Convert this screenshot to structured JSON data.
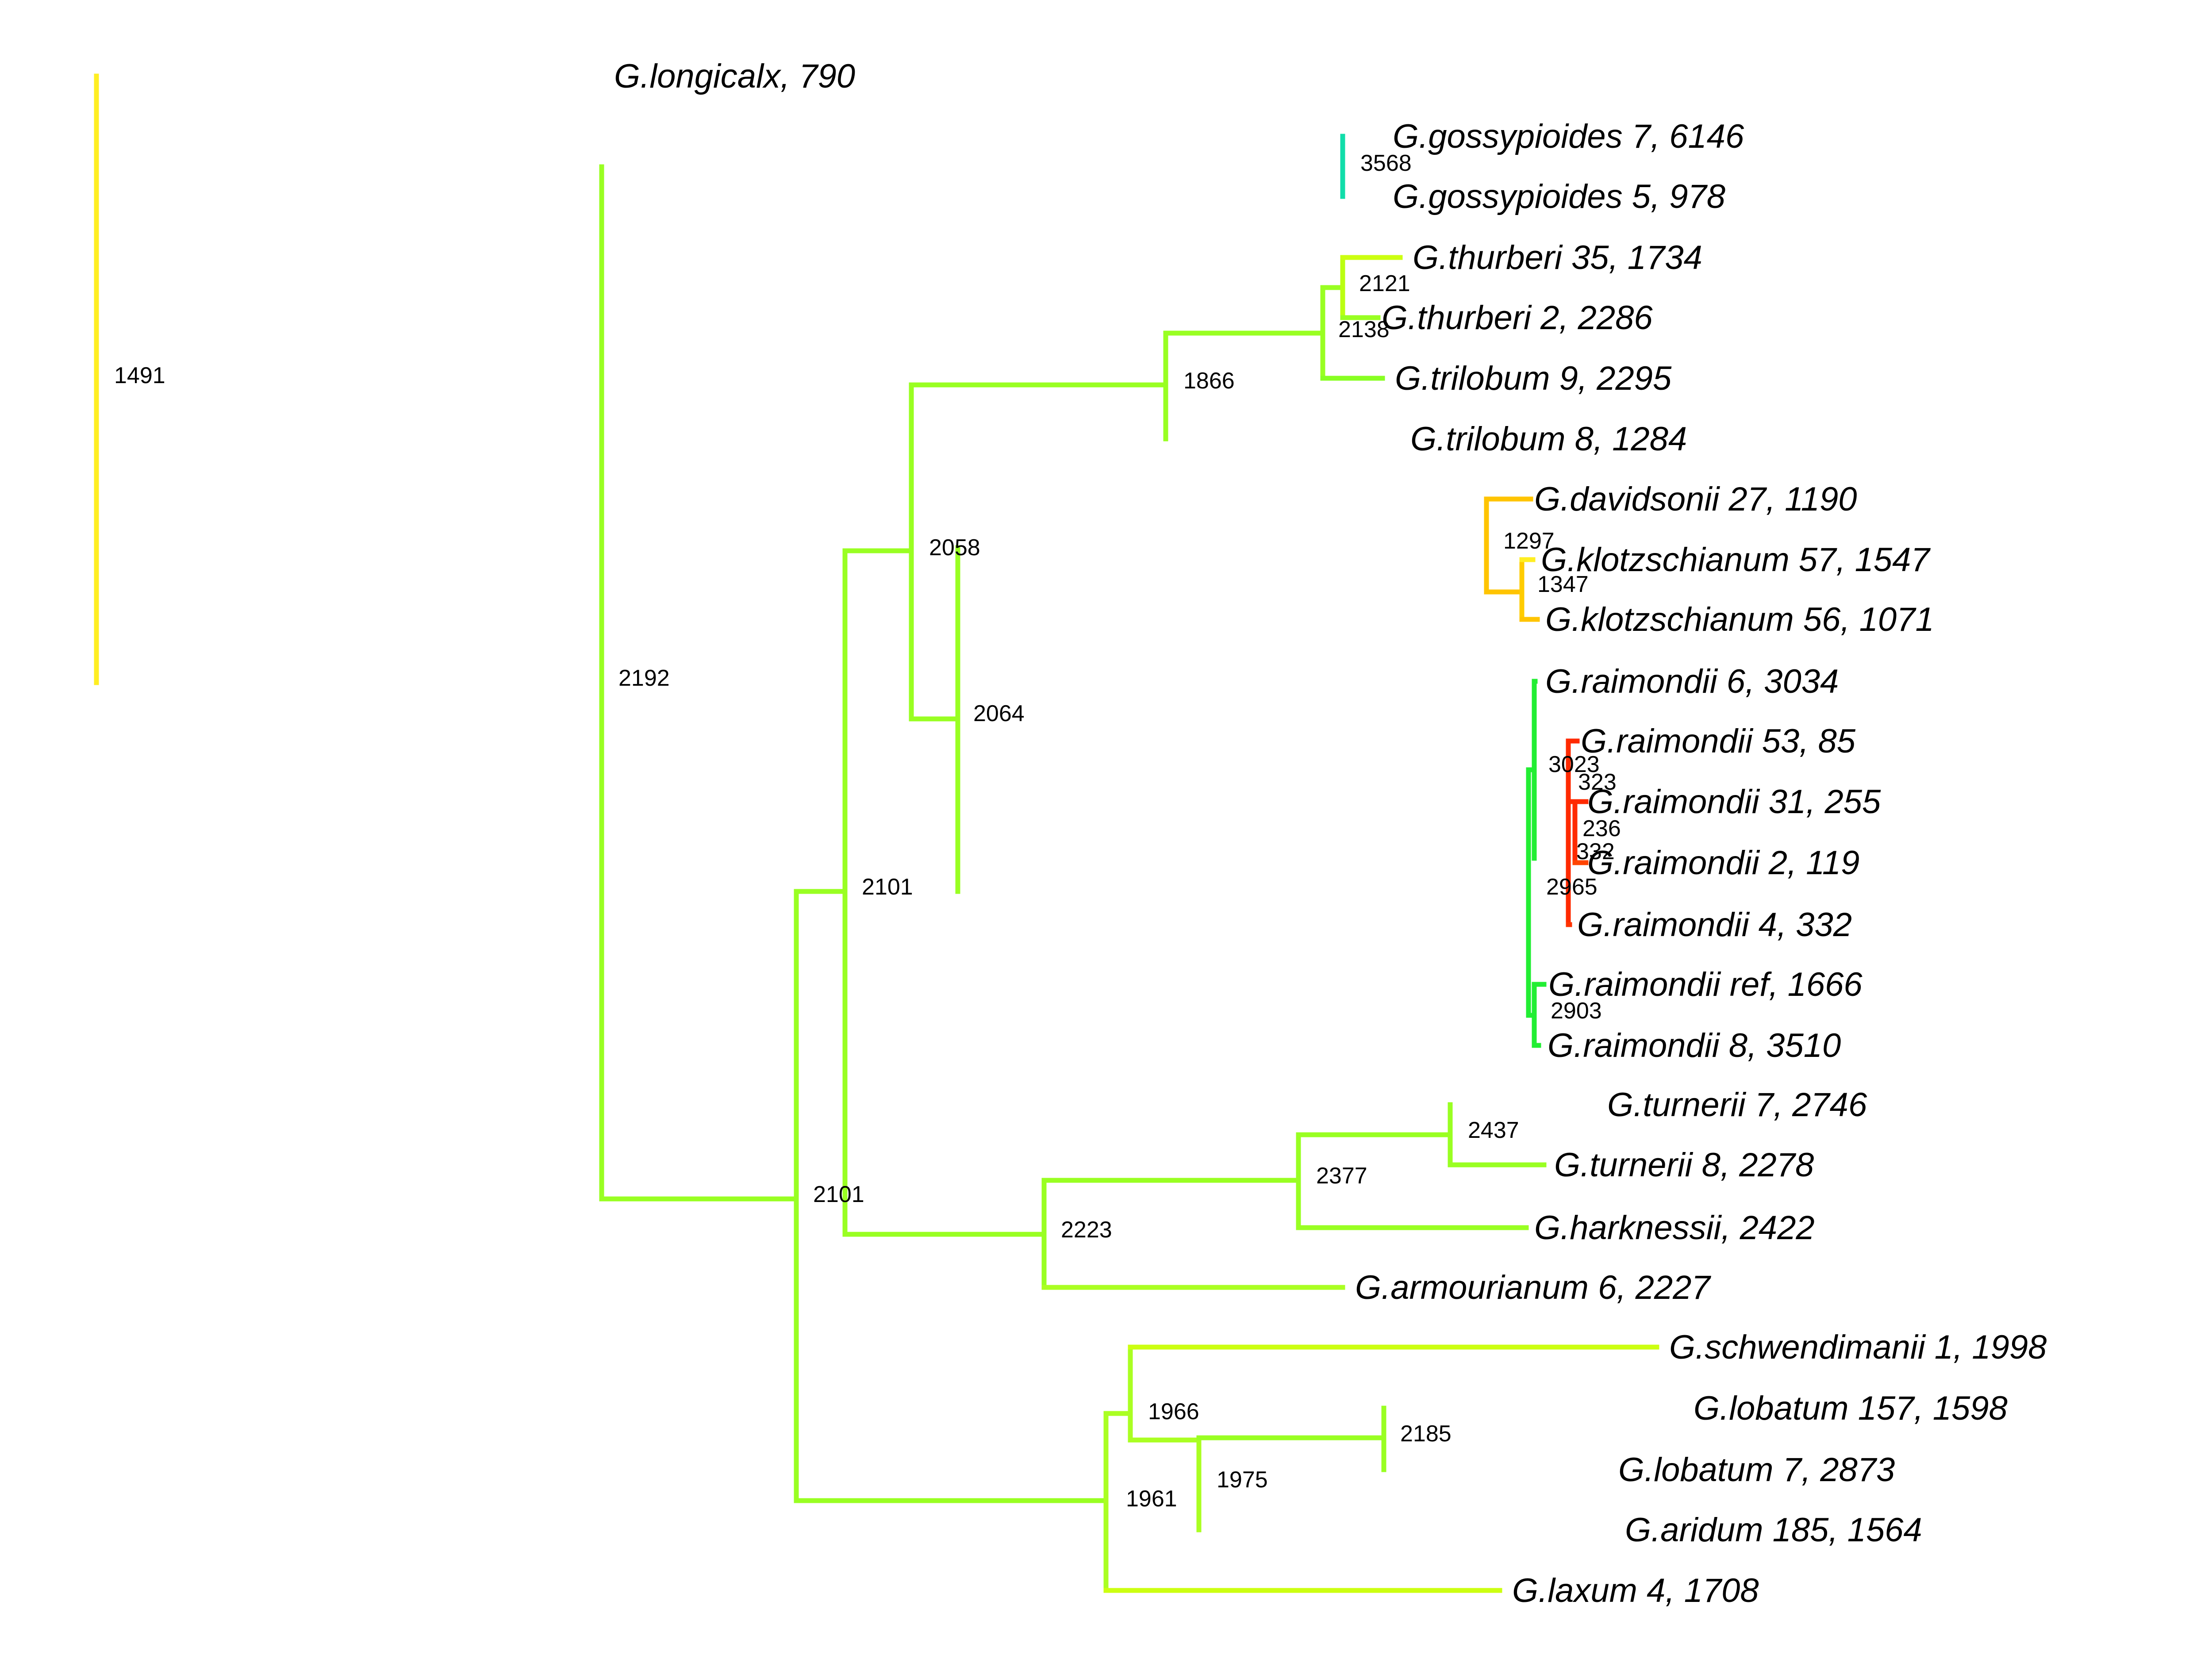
{
  "tree": {
    "tips": [
      {
        "id": "t_longicalx",
        "label": "G.longicalx, 790"
      },
      {
        "id": "t_goss7",
        "label": "G.gossypioides 7, 6146"
      },
      {
        "id": "t_goss5",
        "label": "G.gossypioides 5, 978"
      },
      {
        "id": "t_thur35",
        "label": "G.thurberi 35, 1734"
      },
      {
        "id": "t_thur2",
        "label": "G.thurberi 2, 2286"
      },
      {
        "id": "t_tril9",
        "label": "G.trilobum 9, 2295"
      },
      {
        "id": "t_tril8",
        "label": "G.trilobum 8, 1284"
      },
      {
        "id": "t_dav27",
        "label": "G.davidsonii 27, 1190"
      },
      {
        "id": "t_klotz57",
        "label": "G.klotzschianum 57, 1547"
      },
      {
        "id": "t_klotz56",
        "label": "G.klotzschianum 56, 1071"
      },
      {
        "id": "t_raim6",
        "label": "G.raimondii 6, 3034"
      },
      {
        "id": "t_raim53",
        "label": "G.raimondii 53, 85"
      },
      {
        "id": "t_raim31",
        "label": "G.raimondii 31, 255"
      },
      {
        "id": "t_raim2",
        "label": "G.raimondii 2, 119"
      },
      {
        "id": "t_raim4",
        "label": "G.raimondii 4, 332"
      },
      {
        "id": "t_raimref",
        "label": "G.raimondii ref, 1666"
      },
      {
        "id": "t_raim8",
        "label": "G.raimondii 8, 3510"
      },
      {
        "id": "t_turn7",
        "label": "G.turnerii 7, 2746"
      },
      {
        "id": "t_turn8",
        "label": "G.turnerii 8, 2278"
      },
      {
        "id": "t_hark",
        "label": "G.harknessii, 2422"
      },
      {
        "id": "t_arm6",
        "label": "G.armourianum 6, 2227"
      },
      {
        "id": "t_schw1",
        "label": "G.schwendimanii 1, 1998"
      },
      {
        "id": "t_lob157",
        "label": "G.lobatum 157, 1598"
      },
      {
        "id": "t_lob7",
        "label": "G.lobatum 7, 2873"
      },
      {
        "id": "t_ari185",
        "label": "G.aridum 185, 1564"
      },
      {
        "id": "t_lax4",
        "label": "G.laxum 4, 1708"
      }
    ],
    "nodes": [
      {
        "id": "n_root",
        "label": "1491"
      },
      {
        "id": "n_2192",
        "label": "2192"
      },
      {
        "id": "n_3568",
        "label": "3568"
      },
      {
        "id": "n_2121",
        "label": "2121"
      },
      {
        "id": "n_2138",
        "label": "2138"
      },
      {
        "id": "n_1866",
        "label": "1866"
      },
      {
        "id": "n_2058",
        "label": "2058"
      },
      {
        "id": "n_1297",
        "label": "1297"
      },
      {
        "id": "n_1347",
        "label": "1347"
      },
      {
        "id": "n_2064",
        "label": "2064"
      },
      {
        "id": "n_3023",
        "label": "3023"
      },
      {
        "id": "n_323",
        "label": "323"
      },
      {
        "id": "n_236",
        "label": "236"
      },
      {
        "id": "n_332",
        "label": "332"
      },
      {
        "id": "n_2965",
        "label": "2965"
      },
      {
        "id": "n_2903",
        "label": "2903"
      },
      {
        "id": "n_2101a",
        "label": "2101"
      },
      {
        "id": "n_2101b",
        "label": "2101"
      },
      {
        "id": "n_2437",
        "label": "2437"
      },
      {
        "id": "n_2377",
        "label": "2377"
      },
      {
        "id": "n_2223",
        "label": "2223"
      },
      {
        "id": "n_2185",
        "label": "2185"
      },
      {
        "id": "n_1975",
        "label": "1975"
      },
      {
        "id": "n_1966",
        "label": "1966"
      },
      {
        "id": "n_1961",
        "label": "1961"
      }
    ],
    "colors": {
      "red": "#ff2a00",
      "orange": "#f07a10",
      "amber": "#ffc400",
      "yellow": "#ffee22",
      "lime": "#ccff11",
      "yellowgreen": "#99ff22",
      "green": "#22ee33",
      "teal": "#11ddaa",
      "blue": "#2200ee"
    }
  }
}
